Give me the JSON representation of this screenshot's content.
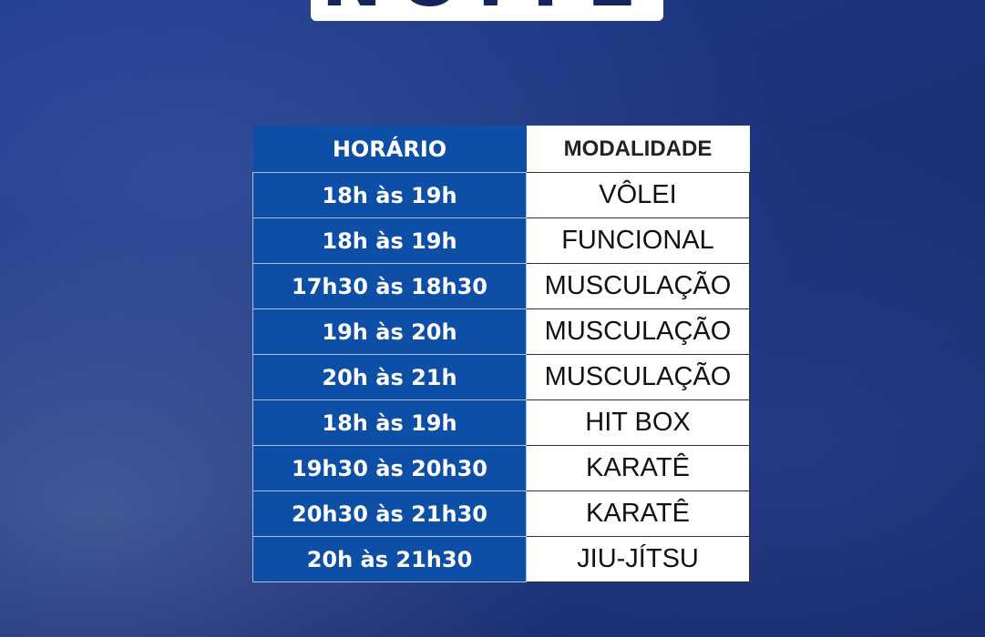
{
  "title": "NOITE",
  "table": {
    "headers": [
      "HORÁRIO",
      "MODALIDADE"
    ],
    "rows": [
      [
        "18h às 19h",
        "VÔLEI"
      ],
      [
        "18h às 19h",
        "FUNCIONAL"
      ],
      [
        "17h30 às 18h30",
        "MUSCULAÇÃO"
      ],
      [
        "19h às 20h",
        "MUSCULAÇÃO"
      ],
      [
        "20h às 21h",
        "MUSCULAÇÃO"
      ],
      [
        "18h às 19h",
        "HIT BOX"
      ],
      [
        "19h30 às 20h30",
        "KARATÊ"
      ],
      [
        "20h30 às 21h30",
        "KARATÊ"
      ],
      [
        "20h às 21h30",
        "JIU-JÍTSU"
      ]
    ]
  },
  "colors": {
    "horario_cell": "#0d4ea6",
    "modalidade_cell": "#ffffff",
    "background": "#1b3278"
  }
}
